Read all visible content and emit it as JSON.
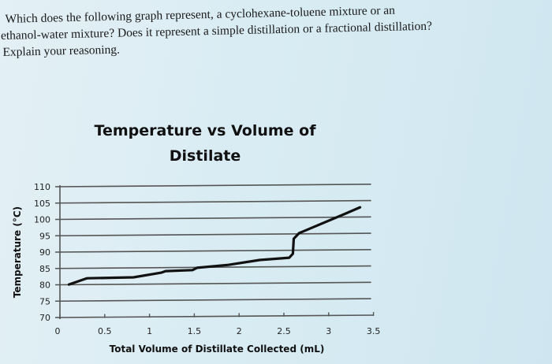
{
  "question": {
    "lines": [
      "Which does the following graph represent, a cyclohexane-toluene mixture or an",
      "ethanol-water mixture? Does it represent a simple distillation or a fractional distillation?",
      "Explain your reasoning."
    ]
  },
  "chart_data": {
    "type": "line",
    "title": "Temperature vs Volume of Distilate",
    "title_lines": [
      "Temperature vs Volume of",
      "Distilate"
    ],
    "xlabel": "Total Volume of Distillate Collected (mL)",
    "ylabel": "Temperature (°C)",
    "xlim": [
      0,
      3.5
    ],
    "ylim": [
      70,
      110
    ],
    "x_ticks": [
      "0",
      "0.5",
      "1",
      "1.5",
      "2",
      "2.5",
      "3",
      "3.5"
    ],
    "y_ticks": [
      "70",
      "75",
      "80",
      "85",
      "90",
      "95",
      "100",
      "105",
      "110"
    ],
    "grid": "horizontal",
    "legend": "none",
    "series": [
      {
        "name": "Temperature",
        "color": "#111111",
        "x": [
          0.1,
          0.3,
          0.82,
          1.13,
          1.18,
          1.48,
          1.53,
          1.88,
          2.23,
          2.56,
          2.6,
          2.61,
          2.67,
          3.19,
          3.35
        ],
        "y": [
          80.1,
          82.0,
          82.3,
          83.7,
          84.2,
          84.5,
          85.2,
          86.1,
          87.6,
          88.3,
          89.5,
          94.1,
          95.8,
          101.8,
          103.7
        ]
      }
    ]
  },
  "colors": {
    "background": "#d9ecf3",
    "gridline": "#555555",
    "curve": "#111111",
    "text": "#1a1a1a"
  }
}
